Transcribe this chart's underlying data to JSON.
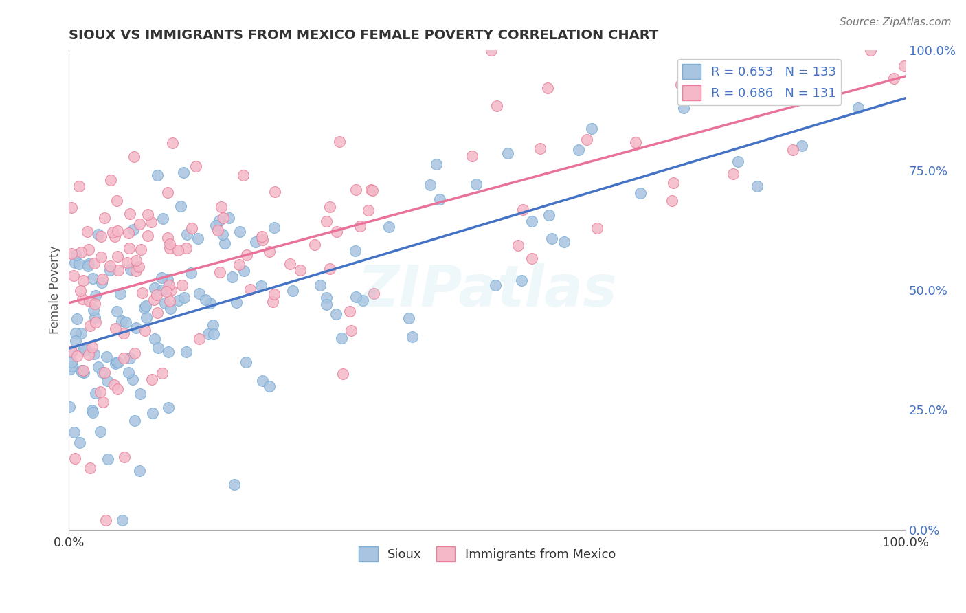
{
  "title": "SIOUX VS IMMIGRANTS FROM MEXICO FEMALE POVERTY CORRELATION CHART",
  "source": "Source: ZipAtlas.com",
  "ylabel": "Female Poverty",
  "sioux_R": 0.653,
  "sioux_N": 133,
  "mexico_R": 0.686,
  "mexico_N": 131,
  "sioux_color": "#a8c4e0",
  "sioux_edge": "#7aaed6",
  "mexico_color": "#f4b8c8",
  "mexico_edge": "#e8809a",
  "sioux_line_color": "#4472c4",
  "mexico_line_color": "#e8729a",
  "background_color": "#ffffff",
  "grid_color": "#cccccc",
  "title_color": "#333333",
  "legend_color": "#4472c4",
  "right_axis_color": "#4472c4",
  "watermark": "ZIPatlas",
  "xlim": [
    0.0,
    1.0
  ],
  "ylim": [
    0.0,
    1.0
  ],
  "right_yticks": [
    0.0,
    0.25,
    0.5,
    0.75,
    1.0
  ],
  "right_yticklabels": [
    "0.0%",
    "25.0%",
    "50.0%",
    "75.0%",
    "100.0%"
  ]
}
